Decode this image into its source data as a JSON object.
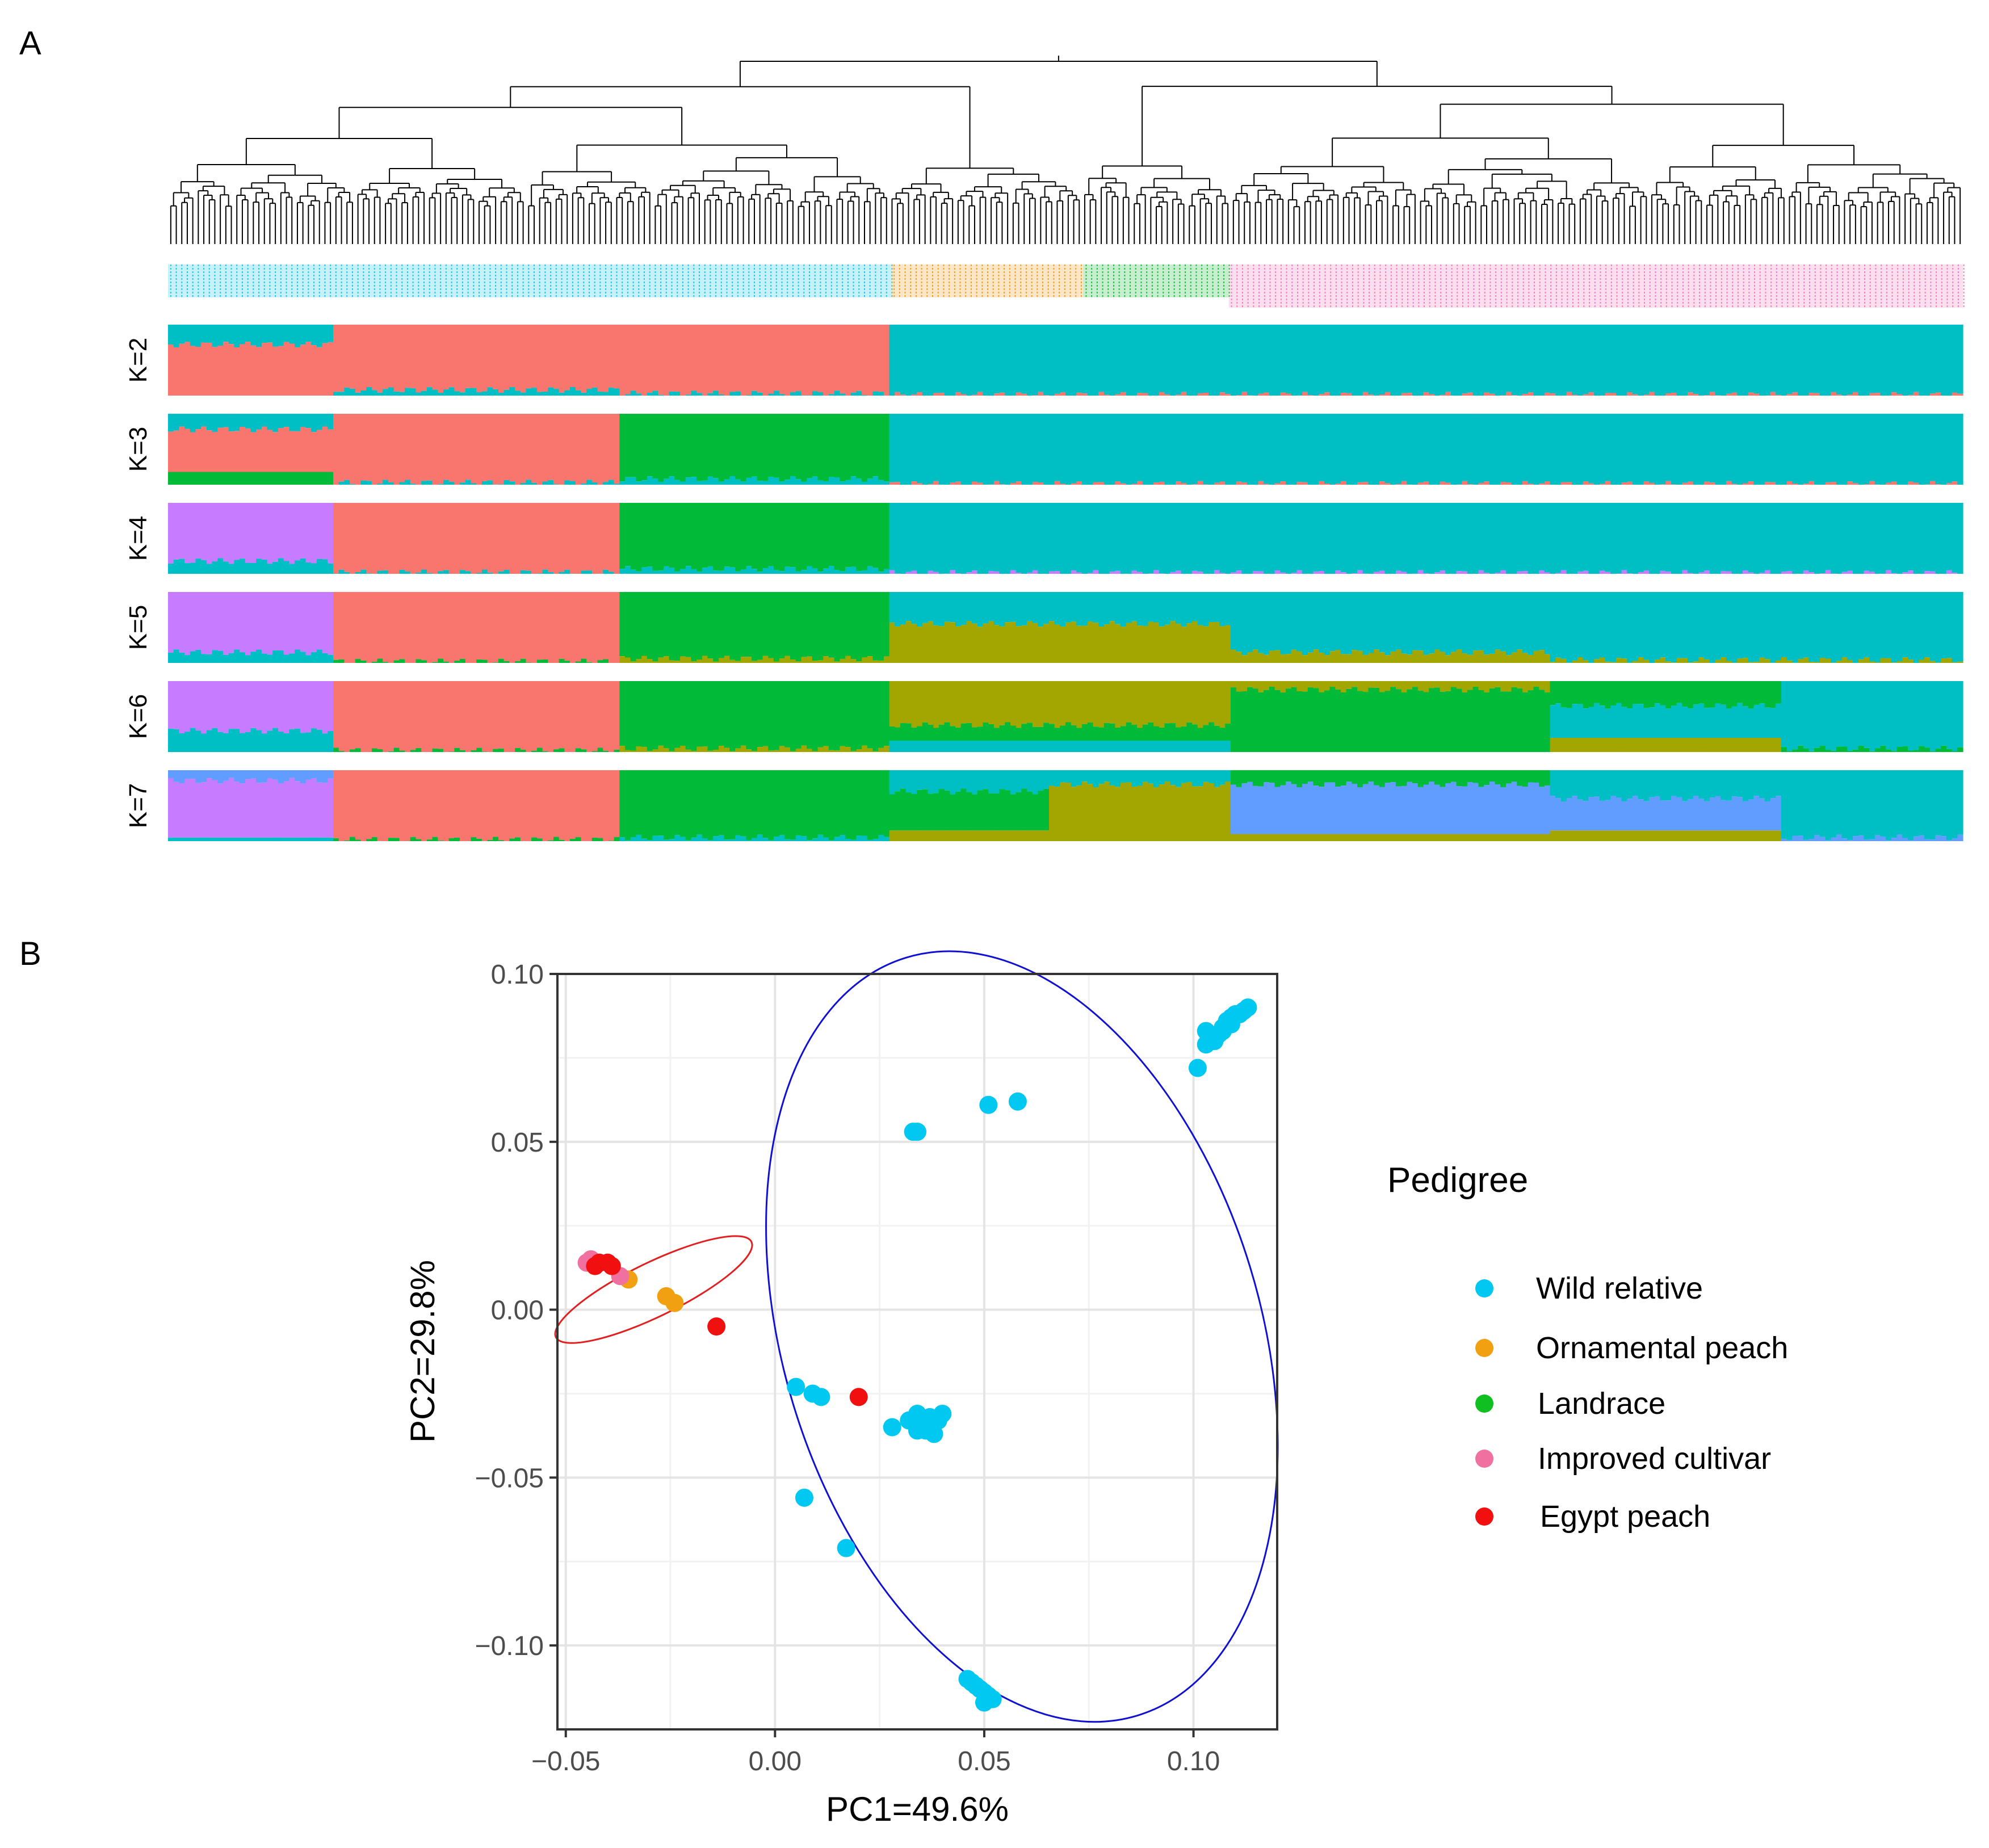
{
  "panels": {
    "a_label": "A",
    "b_label": "B"
  },
  "structure": {
    "k_labels": [
      "K=2",
      "K=3",
      "K=4",
      "K=5",
      "K=6",
      "K=7"
    ],
    "n_samples": 326,
    "group_boundaries": [
      0.0,
      0.403,
      0.51,
      0.591,
      1.0
    ],
    "group_colors": [
      "#1ec8e8",
      "#f0a020",
      "#20c040",
      "#f080c0"
    ],
    "cluster_colors": {
      "red": "#f8766d",
      "teal": "#00bfc4",
      "green": "#00ba38",
      "purple": "#c77cff",
      "olive": "#a3a500",
      "blue": "#619cff"
    },
    "rows": [
      {
        "k": 2,
        "segments": [
          {
            "from": 0.0,
            "to": 0.093,
            "colors": [
              "teal",
              "red"
            ],
            "props": [
              0.28,
              0.72
            ]
          },
          {
            "from": 0.093,
            "to": 0.251,
            "colors": [
              "red",
              "teal"
            ],
            "props": [
              0.92,
              0.08
            ]
          },
          {
            "from": 0.251,
            "to": 0.403,
            "colors": [
              "red",
              "teal"
            ],
            "props": [
              0.97,
              0.03
            ]
          },
          {
            "from": 0.403,
            "to": 1.0,
            "colors": [
              "teal",
              "red"
            ],
            "props": [
              0.99,
              0.01
            ]
          }
        ]
      },
      {
        "k": 3,
        "segments": [
          {
            "from": 0.0,
            "to": 0.093,
            "colors": [
              "teal",
              "red",
              "green"
            ],
            "props": [
              0.22,
              0.6,
              0.18
            ]
          },
          {
            "from": 0.093,
            "to": 0.25,
            "colors": [
              "red",
              "teal"
            ],
            "props": [
              0.97,
              0.03
            ]
          },
          {
            "from": 0.25,
            "to": 0.403,
            "colors": [
              "green",
              "teal"
            ],
            "props": [
              0.92,
              0.08
            ]
          },
          {
            "from": 0.403,
            "to": 1.0,
            "colors": [
              "teal",
              "red"
            ],
            "props": [
              0.99,
              0.01
            ]
          }
        ]
      },
      {
        "k": 4,
        "segments": [
          {
            "from": 0.0,
            "to": 0.091,
            "colors": [
              "purple",
              "teal"
            ],
            "props": [
              0.82,
              0.18
            ]
          },
          {
            "from": 0.091,
            "to": 0.25,
            "colors": [
              "red",
              "teal"
            ],
            "props": [
              0.98,
              0.02
            ]
          },
          {
            "from": 0.25,
            "to": 0.403,
            "colors": [
              "green",
              "teal"
            ],
            "props": [
              0.93,
              0.07
            ]
          },
          {
            "from": 0.403,
            "to": 1.0,
            "colors": [
              "teal",
              "purple"
            ],
            "props": [
              0.99,
              0.01
            ]
          }
        ]
      },
      {
        "k": 5,
        "segments": [
          {
            "from": 0.0,
            "to": 0.091,
            "colors": [
              "purple",
              "teal"
            ],
            "props": [
              0.85,
              0.15
            ]
          },
          {
            "from": 0.091,
            "to": 0.25,
            "colors": [
              "red",
              "green"
            ],
            "props": [
              0.98,
              0.02
            ]
          },
          {
            "from": 0.25,
            "to": 0.403,
            "colors": [
              "green",
              "olive"
            ],
            "props": [
              0.94,
              0.06
            ]
          },
          {
            "from": 0.403,
            "to": 0.591,
            "colors": [
              "teal",
              "olive"
            ],
            "props": [
              0.45,
              0.55
            ]
          },
          {
            "from": 0.591,
            "to": 0.77,
            "colors": [
              "teal",
              "olive"
            ],
            "props": [
              0.85,
              0.15
            ]
          },
          {
            "from": 0.77,
            "to": 1.0,
            "colors": [
              "teal",
              "olive"
            ],
            "props": [
              0.96,
              0.04
            ]
          }
        ]
      },
      {
        "k": 6,
        "segments": [
          {
            "from": 0.0,
            "to": 0.091,
            "colors": [
              "purple",
              "teal"
            ],
            "props": [
              0.7,
              0.3
            ]
          },
          {
            "from": 0.091,
            "to": 0.25,
            "colors": [
              "red",
              "green"
            ],
            "props": [
              0.98,
              0.02
            ]
          },
          {
            "from": 0.25,
            "to": 0.403,
            "colors": [
              "green",
              "olive"
            ],
            "props": [
              0.95,
              0.05
            ]
          },
          {
            "from": 0.403,
            "to": 0.591,
            "colors": [
              "olive",
              "green",
              "teal"
            ],
            "props": [
              0.62,
              0.22,
              0.16
            ]
          },
          {
            "from": 0.591,
            "to": 0.77,
            "colors": [
              "olive",
              "green"
            ],
            "props": [
              0.12,
              0.88
            ]
          },
          {
            "from": 0.77,
            "to": 0.9,
            "colors": [
              "green",
              "teal",
              "olive"
            ],
            "props": [
              0.35,
              0.45,
              0.2
            ]
          },
          {
            "from": 0.9,
            "to": 1.0,
            "colors": [
              "teal",
              "green"
            ],
            "props": [
              0.95,
              0.05
            ]
          }
        ]
      },
      {
        "k": 7,
        "segments": [
          {
            "from": 0.0,
            "to": 0.091,
            "colors": [
              "blue",
              "purple",
              "teal"
            ],
            "props": [
              0.15,
              0.8,
              0.05
            ]
          },
          {
            "from": 0.091,
            "to": 0.25,
            "colors": [
              "red",
              "green"
            ],
            "props": [
              0.98,
              0.02
            ]
          },
          {
            "from": 0.25,
            "to": 0.403,
            "colors": [
              "green",
              "teal"
            ],
            "props": [
              0.95,
              0.05
            ]
          },
          {
            "from": 0.403,
            "to": 0.491,
            "colors": [
              "teal",
              "green",
              "olive"
            ],
            "props": [
              0.3,
              0.55,
              0.15
            ]
          },
          {
            "from": 0.491,
            "to": 0.591,
            "colors": [
              "teal",
              "olive"
            ],
            "props": [
              0.2,
              0.8
            ]
          },
          {
            "from": 0.591,
            "to": 0.77,
            "colors": [
              "green",
              "blue",
              "olive"
            ],
            "props": [
              0.2,
              0.7,
              0.1
            ]
          },
          {
            "from": 0.77,
            "to": 0.9,
            "colors": [
              "teal",
              "blue",
              "olive"
            ],
            "props": [
              0.4,
              0.45,
              0.15
            ]
          },
          {
            "from": 0.9,
            "to": 1.0,
            "colors": [
              "teal",
              "blue"
            ],
            "props": [
              0.95,
              0.05
            ]
          }
        ]
      }
    ]
  },
  "chart_data": {
    "type": "scatter",
    "xlabel": "PC1=49.6%",
    "ylabel": "PC2=29.8%",
    "xlim": [
      -0.052,
      0.12
    ],
    "ylim": [
      -0.125,
      0.1
    ],
    "x_ticks": [
      -0.05,
      0.0,
      0.05,
      0.1
    ],
    "x_tick_labels": [
      "−0.05",
      "0.00",
      "0.05",
      "0.10"
    ],
    "y_ticks": [
      -0.1,
      -0.05,
      0.0,
      0.05,
      0.1
    ],
    "y_tick_labels": [
      "−0.10",
      "−0.05",
      "0.00",
      "0.05",
      "0.10"
    ],
    "grid": true,
    "legend_title": "Pedigree",
    "legend_position": "right",
    "series": [
      {
        "name": "Wild relative",
        "color": "#00c8f0",
        "points": [
          [
            0.101,
            0.072
          ],
          [
            0.103,
            0.079
          ],
          [
            0.103,
            0.083
          ],
          [
            0.105,
            0.08
          ],
          [
            0.106,
            0.082
          ],
          [
            0.107,
            0.084
          ],
          [
            0.108,
            0.086
          ],
          [
            0.109,
            0.087
          ],
          [
            0.11,
            0.088
          ],
          [
            0.111,
            0.088
          ],
          [
            0.112,
            0.089
          ],
          [
            0.113,
            0.09
          ],
          [
            0.107,
            0.083
          ],
          [
            0.109,
            0.085
          ],
          [
            0.051,
            0.061
          ],
          [
            0.058,
            0.062
          ],
          [
            0.033,
            0.053
          ],
          [
            0.034,
            0.053
          ],
          [
            0.005,
            -0.023
          ],
          [
            0.009,
            -0.025
          ],
          [
            0.011,
            -0.026
          ],
          [
            0.028,
            -0.035
          ],
          [
            0.032,
            -0.033
          ],
          [
            0.034,
            -0.031
          ],
          [
            0.035,
            -0.034
          ],
          [
            0.036,
            -0.036
          ],
          [
            0.037,
            -0.032
          ],
          [
            0.038,
            -0.037
          ],
          [
            0.039,
            -0.033
          ],
          [
            0.04,
            -0.031
          ],
          [
            0.034,
            -0.036
          ],
          [
            0.037,
            -0.034
          ],
          [
            0.007,
            -0.056
          ],
          [
            0.017,
            -0.071
          ],
          [
            0.046,
            -0.11
          ],
          [
            0.047,
            -0.111
          ],
          [
            0.048,
            -0.112
          ],
          [
            0.049,
            -0.113
          ],
          [
            0.05,
            -0.114
          ],
          [
            0.051,
            -0.115
          ],
          [
            0.052,
            -0.116
          ],
          [
            0.05,
            -0.117
          ]
        ]
      },
      {
        "name": "Ornamental peach",
        "color": "#f0a010",
        "points": [
          [
            -0.035,
            0.009
          ],
          [
            -0.026,
            0.004
          ],
          [
            -0.024,
            0.002
          ]
        ]
      },
      {
        "name": "Landrace",
        "color": "#10c020",
        "points": []
      },
      {
        "name": "Improved cultivar",
        "color": "#f070a0",
        "points": [
          [
            -0.045,
            0.014
          ],
          [
            -0.044,
            0.015
          ],
          [
            -0.037,
            0.01
          ]
        ]
      },
      {
        "name": "Egypt peach",
        "color": "#f01010",
        "points": [
          [
            -0.043,
            0.013
          ],
          [
            -0.042,
            0.014
          ],
          [
            -0.04,
            0.014
          ],
          [
            -0.039,
            0.013
          ],
          [
            -0.014,
            -0.005
          ],
          [
            0.02,
            -0.026
          ]
        ]
      }
    ],
    "ellipses": [
      {
        "color": "#e02020",
        "cx": -0.029,
        "cy": 0.006,
        "rx": 0.026,
        "ry": 0.008,
        "angle": -26
      },
      {
        "color": "#1010d0",
        "cx": 0.059,
        "cy": -0.008,
        "rx": 0.057,
        "ry": 0.118,
        "angle": -17
      }
    ]
  }
}
